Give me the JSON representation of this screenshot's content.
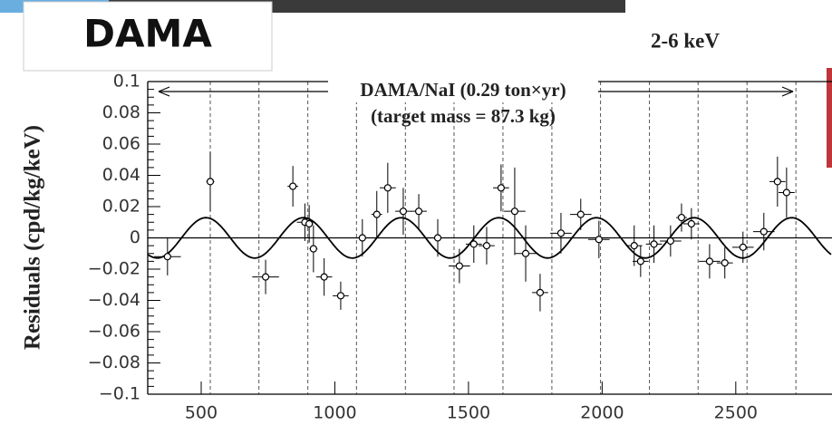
{
  "chart_data": {
    "type": "scatter",
    "title": "DAMA",
    "subtitle": "2-6 keV",
    "ylabel": "Residuals (cpd/kg/keV)",
    "annotations": [
      "DAMA/NaI (0.29 ton×yr)",
      "(target mass = 87.3 kg)"
    ],
    "xlim": [
      300,
      2860
    ],
    "xticks": [
      500,
      1000,
      1500,
      2000,
      2500
    ],
    "ylim": [
      -0.1,
      0.1
    ],
    "yticks": [
      {
        "value": -0.1,
        "label": "−0.1"
      },
      {
        "value": -0.08,
        "label": "−0.08"
      },
      {
        "value": -0.06,
        "label": "−0.06"
      },
      {
        "value": -0.04,
        "label": "−0.04"
      },
      {
        "value": -0.02,
        "label": "−0.02"
      },
      0,
      0.02,
      0.04,
      0.06,
      0.08,
      0.1
    ],
    "reference_lines": [
      534,
      716,
      899,
      1081,
      1264,
      1446,
      1629,
      1812,
      1994,
      2177,
      2359,
      2542,
      2725
    ],
    "fit": {
      "amplitude": 0.0129,
      "period": 365.25,
      "phase": 152.5
    },
    "series": [
      {
        "color": "#000000",
        "x": [
          374,
          534,
          741,
          843,
          888,
          904,
          920,
          960,
          1022,
          1103,
          1157,
          1198,
          1256,
          1314,
          1385,
          1466,
          1520,
          1568,
          1622,
          1673,
          1714,
          1768,
          1846,
          1920,
          1988,
          2120,
          2144,
          2194,
          2256,
          2297,
          2334,
          2402,
          2459,
          2527,
          2605,
          2656,
          2690
        ],
        "values": [
          -0.012,
          0.036,
          -0.025,
          0.033,
          0.01,
          0.009,
          -0.007,
          -0.025,
          -0.037,
          0.0,
          0.015,
          0.032,
          0.017,
          0.017,
          0.0,
          -0.018,
          -0.004,
          -0.005,
          0.032,
          0.017,
          -0.01,
          -0.035,
          0.003,
          0.015,
          -0.001,
          -0.005,
          -0.015,
          -0.004,
          -0.002,
          0.013,
          0.009,
          -0.015,
          -0.016,
          -0.006,
          0.004,
          0.036,
          0.029
        ],
        "yerr": [
          0.012,
          0.019,
          0.011,
          0.013,
          0.012,
          0.012,
          0.015,
          0.012,
          0.009,
          0.012,
          0.015,
          0.016,
          0.015,
          0.011,
          0.012,
          0.011,
          0.012,
          0.012,
          0.015,
          0.028,
          0.018,
          0.012,
          0.013,
          0.01,
          0.012,
          0.013,
          0.01,
          0.012,
          0.01,
          0.009,
          0.01,
          0.011,
          0.01,
          0.01,
          0.012,
          0.016,
          0.016
        ],
        "xerr": [
          50,
          15,
          50,
          20,
          30,
          15,
          15,
          30,
          30,
          30,
          20,
          30,
          30,
          30,
          30,
          40,
          30,
          30,
          30,
          40,
          40,
          30,
          40,
          40,
          40,
          30,
          30,
          30,
          40,
          20,
          30,
          40,
          30,
          40,
          40,
          30,
          30
        ]
      }
    ]
  }
}
